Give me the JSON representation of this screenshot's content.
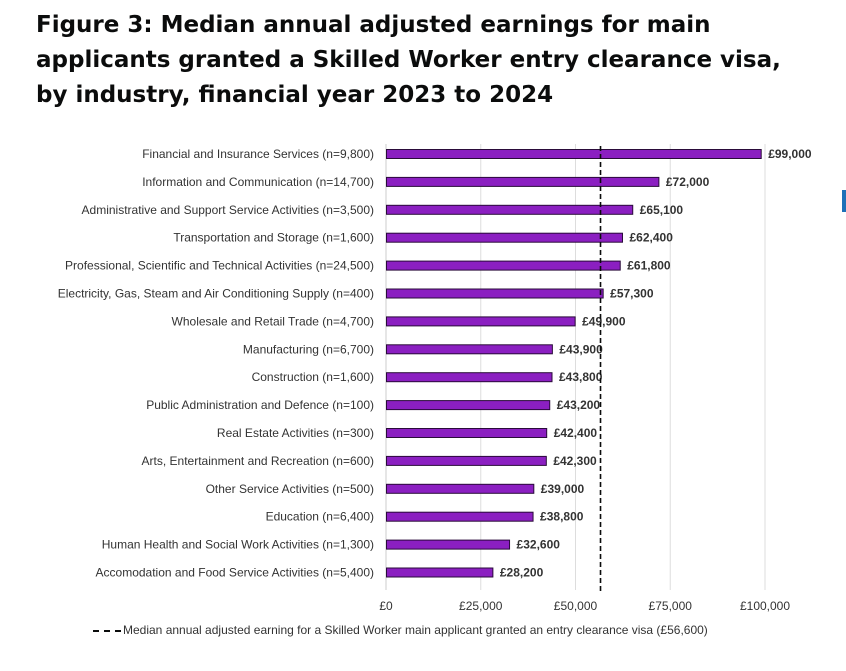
{
  "title": "Figure 3: Median annual adjusted earnings for main applicants granted a Skilled Worker entry clearance visa, by industry, financial year 2023 to 2024",
  "colors": {
    "bar": "#8b1fc1",
    "bar_border": "#2a0b3a",
    "grid": "#dddddd",
    "median_line": "#0b0c0c"
  },
  "chart_data": {
    "type": "bar",
    "orientation": "horizontal",
    "categories": [
      "Financial and Insurance Services (n=9,800)",
      "Information and Communication (n=14,700)",
      "Administrative and Support Service Activities (n=3,500)",
      "Transportation and Storage (n=1,600)",
      "Professional, Scientific and Technical Activities (n=24,500)",
      "Electricity, Gas, Steam and Air Conditioning Supply (n=400)",
      "Wholesale and Retail Trade (n=4,700)",
      "Manufacturing (n=6,700)",
      "Construction (n=1,600)",
      "Public Administration and Defence (n=100)",
      "Real Estate Activities (n=300)",
      "Arts, Entertainment and Recreation (n=600)",
      "Other Service Activities (n=500)",
      "Education (n=6,400)",
      "Human Health and Social Work Activities (n=1,300)",
      "Accomodation and Food Service Activities (n=5,400)"
    ],
    "values": [
      99000,
      72000,
      65100,
      62400,
      61800,
      57300,
      49900,
      43900,
      43800,
      43200,
      42400,
      42300,
      39000,
      38800,
      32600,
      28200
    ],
    "value_labels": [
      "£99,000",
      "£72,000",
      "£65,100",
      "£62,400",
      "£61,800",
      "£57,300",
      "£49,900",
      "£43,900",
      "£43,800",
      "£43,200",
      "£42,400",
      "£42,300",
      "£39,000",
      "£38,800",
      "£32,600",
      "£28,200"
    ],
    "xlim": [
      0,
      100000
    ],
    "x_ticks": [
      0,
      25000,
      50000,
      75000,
      100000
    ],
    "x_tick_labels": [
      "£0",
      "£25,000",
      "£50,000",
      "£75,000",
      "£100,000"
    ],
    "grid": "vertical",
    "reference_line": {
      "value": 56600,
      "style": "dashed"
    },
    "legend": {
      "position": "bottom",
      "label": "Median annual adjusted earning for a Skilled Worker main applicant granted an entry clearance visa (£56,600)"
    }
  }
}
